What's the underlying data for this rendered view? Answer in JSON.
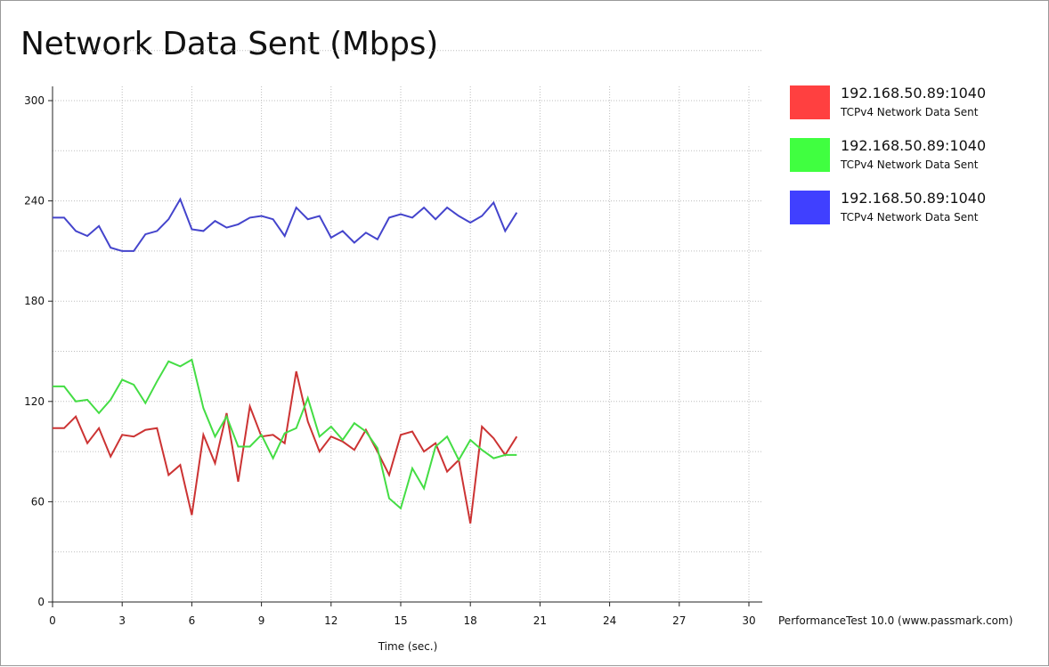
{
  "chart_data": {
    "type": "line",
    "title": "Network Data Sent (Mbps)",
    "xlabel": "Time (sec.)",
    "ylabel": "",
    "xlim": [
      0,
      30
    ],
    "ylim": [
      0,
      300
    ],
    "x_ticks": [
      0,
      3,
      6,
      9,
      12,
      15,
      18,
      21,
      24,
      27,
      30
    ],
    "y_ticks": [
      0,
      60,
      120,
      180,
      240,
      300
    ],
    "grid": true,
    "legend_position": "right",
    "x": [
      0,
      0.5,
      1,
      1.5,
      2,
      2.5,
      3,
      3.5,
      4,
      4.5,
      5,
      5.5,
      6,
      6.5,
      7,
      7.5,
      8,
      8.5,
      9,
      9.5,
      10,
      10.5,
      11,
      11.5,
      12,
      12.5,
      13,
      13.5,
      14,
      14.5,
      15,
      15.5,
      16,
      16.5,
      17,
      17.5,
      18,
      18.5,
      19,
      19.5,
      20
    ],
    "series": [
      {
        "name": "192.168.50.89:1040",
        "description": "TCPv4 Network Data Sent",
        "color": "#cc3333",
        "legend_color": "#ff4040",
        "values": [
          104,
          104,
          111,
          95,
          104,
          87,
          100,
          99,
          103,
          104,
          76,
          82,
          52,
          100,
          83,
          113,
          72,
          117,
          99,
          100,
          95,
          138,
          108,
          90,
          99,
          96,
          91,
          103,
          90,
          76,
          100,
          102,
          90,
          95,
          78,
          85,
          47,
          105,
          98,
          88,
          99
        ]
      },
      {
        "name": "192.168.50.89:1040",
        "description": "TCPv4 Network Data Sent",
        "color": "#44dd44",
        "legend_color": "#40ff40",
        "values": [
          129,
          129,
          120,
          121,
          113,
          121,
          133,
          130,
          119,
          132,
          144,
          141,
          145,
          116,
          99,
          111,
          93,
          93,
          100,
          86,
          101,
          104,
          122,
          99,
          105,
          97,
          107,
          102,
          92,
          62,
          56,
          80,
          68,
          93,
          99,
          85,
          97,
          91,
          86,
          88,
          88
        ]
      },
      {
        "name": "192.168.50.89:1040",
        "description": "TCPv4 Network Data Sent",
        "color": "#4444cc",
        "legend_color": "#4040ff",
        "values": [
          230,
          230,
          222,
          219,
          225,
          212,
          210,
          210,
          220,
          222,
          229,
          241,
          223,
          222,
          228,
          224,
          226,
          230,
          231,
          229,
          219,
          236,
          229,
          231,
          218,
          222,
          215,
          221,
          217,
          230,
          232,
          230,
          236,
          229,
          236,
          231,
          227,
          231,
          239,
          222,
          233
        ]
      }
    ],
    "footer": "PerformanceTest 10.0 (www.passmark.com)"
  }
}
